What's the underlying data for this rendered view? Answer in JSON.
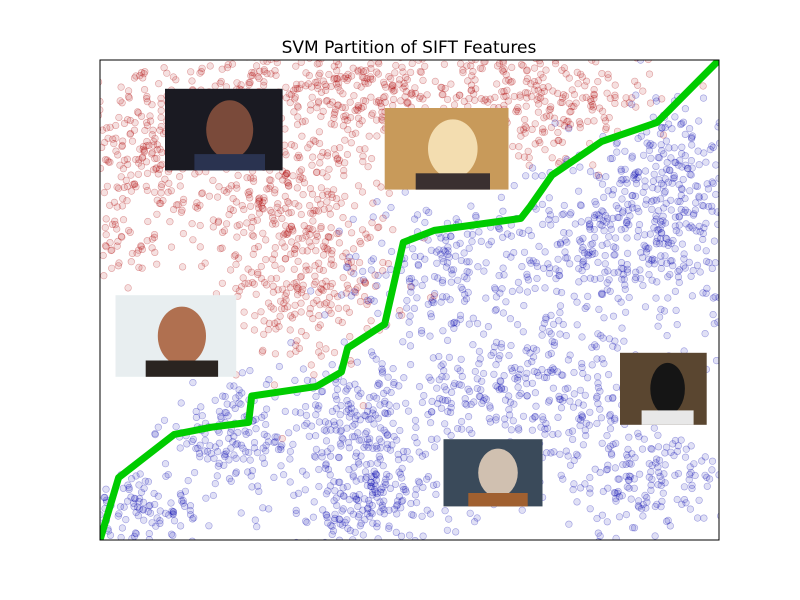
{
  "chart_data": {
    "type": "scatter",
    "title": "SVM Partition of SIFT Features",
    "xlabel": "",
    "ylabel": "",
    "xlim": [
      0,
      100
    ],
    "ylim": [
      0,
      100
    ],
    "grid": false,
    "axis_ticks": false,
    "colors": {
      "red": "#b00000",
      "blue": "#0000b0",
      "boundary": "#00cc00"
    },
    "series": [
      {
        "class": "red",
        "clusters": [
          {
            "cx": 8,
            "cy": 82,
            "sx": 6,
            "sy": 7,
            "n": 200
          },
          {
            "cx": 2,
            "cy": 62,
            "sx": 4,
            "sy": 5,
            "n": 70
          },
          {
            "cx": 30,
            "cy": 72,
            "sx": 8,
            "sy": 8,
            "n": 300
          },
          {
            "cx": 33,
            "cy": 52,
            "sx": 7,
            "sy": 8,
            "n": 230
          },
          {
            "cx": 40,
            "cy": 95,
            "sx": 9,
            "sy": 6,
            "n": 260
          },
          {
            "cx": 61,
            "cy": 91,
            "sx": 8,
            "sy": 7,
            "n": 150
          },
          {
            "cx": 75,
            "cy": 92,
            "sx": 7,
            "sy": 6,
            "n": 180
          },
          {
            "cx": 20,
            "cy": 96,
            "sx": 10,
            "sy": 4,
            "n": 90
          }
        ]
      },
      {
        "class": "blue",
        "clusters": [
          {
            "cx": 85,
            "cy": 62,
            "sx": 10,
            "sy": 10,
            "n": 420
          },
          {
            "cx": 93,
            "cy": 78,
            "sx": 5,
            "sy": 8,
            "n": 160
          },
          {
            "cx": 55,
            "cy": 55,
            "sx": 9,
            "sy": 8,
            "n": 200
          },
          {
            "cx": 42,
            "cy": 25,
            "sx": 6,
            "sy": 7,
            "n": 180
          },
          {
            "cx": 43,
            "cy": 8,
            "sx": 8,
            "sy": 6,
            "n": 240
          },
          {
            "cx": 22,
            "cy": 22,
            "sx": 6,
            "sy": 5,
            "n": 150
          },
          {
            "cx": 7,
            "cy": 6,
            "sx": 5,
            "sy": 4,
            "n": 110
          },
          {
            "cx": 74,
            "cy": 30,
            "sx": 7,
            "sy": 7,
            "n": 160
          },
          {
            "cx": 87,
            "cy": 13,
            "sx": 7,
            "sy": 6,
            "n": 190
          },
          {
            "cx": 60,
            "cy": 30,
            "sx": 6,
            "sy": 6,
            "n": 110
          }
        ]
      }
    ],
    "boundary": {
      "x": [
        0,
        3,
        12,
        18,
        24,
        24.5,
        35,
        39,
        40,
        46,
        49,
        54,
        68,
        69.5,
        73,
        81,
        90,
        100
      ],
      "y": [
        0,
        13,
        22,
        23.5,
        24.5,
        30,
        32,
        35,
        40,
        45,
        62,
        64.5,
        67,
        69.5,
        76,
        83,
        87,
        100
      ]
    },
    "thumbnails": [
      {
        "name": "man-profile-photo",
        "x": [
          10.5,
          29.5
        ],
        "y": [
          77,
          94
        ],
        "palette": [
          "#1a1a22",
          "#7a4a3a",
          "#2a3350"
        ]
      },
      {
        "name": "man-glasses-photo",
        "x": [
          46,
          66
        ],
        "y": [
          73,
          90
        ],
        "palette": [
          "#c89a5a",
          "#f3ddb0",
          "#3a3030"
        ]
      },
      {
        "name": "smiling-man-photo",
        "x": [
          2.5,
          22
        ],
        "y": [
          34,
          51
        ],
        "palette": [
          "#e8eef0",
          "#b07050",
          "#2a2420"
        ]
      },
      {
        "name": "cat-photo",
        "x": [
          84,
          98
        ],
        "y": [
          24,
          39
        ],
        "palette": [
          "#5a4630",
          "#151515",
          "#e8e8e8"
        ]
      },
      {
        "name": "dog-photo",
        "x": [
          55.5,
          71.5
        ],
        "y": [
          7,
          21
        ],
        "palette": [
          "#3a4a5a",
          "#d0c0b0",
          "#a06030"
        ]
      }
    ]
  }
}
